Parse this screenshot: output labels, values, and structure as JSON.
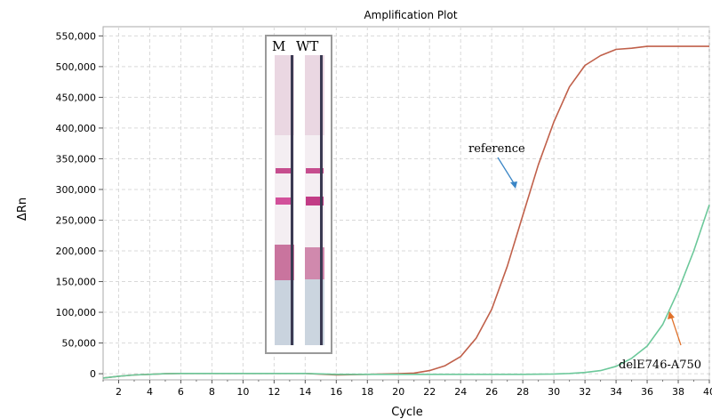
{
  "chart_data": {
    "type": "line",
    "title": "Amplification Plot",
    "xlabel": "Cycle",
    "ylabel": "ΔRn",
    "xlim": [
      1,
      40
    ],
    "ylim": [
      -10000,
      565000
    ],
    "x_ticks": [
      2,
      4,
      6,
      8,
      10,
      12,
      14,
      16,
      18,
      20,
      22,
      24,
      26,
      28,
      30,
      32,
      34,
      36,
      38,
      40
    ],
    "y_ticks": [
      0,
      50000,
      100000,
      150000,
      200000,
      250000,
      300000,
      350000,
      400000,
      450000,
      500000,
      550000
    ],
    "y_tick_labels": [
      "0",
      "50,000",
      "100,000",
      "150,000",
      "200,000",
      "250,000",
      "300,000",
      "350,000",
      "400,000",
      "450,000",
      "500,000",
      "550,000"
    ],
    "grid": true,
    "series": [
      {
        "name": "reference",
        "color": "#c0604a",
        "x": [
          1,
          2,
          3,
          4,
          5,
          6,
          8,
          10,
          12,
          14,
          16,
          18,
          20,
          21,
          22,
          23,
          24,
          25,
          26,
          27,
          28,
          29,
          30,
          31,
          32,
          33,
          34,
          35,
          36,
          37,
          38,
          39,
          40
        ],
        "y": [
          -7000,
          -4000,
          -2000,
          -1000,
          0,
          500,
          500,
          500,
          500,
          500,
          -2000,
          -1000,
          0,
          1000,
          5000,
          13000,
          28000,
          58000,
          105000,
          175000,
          258000,
          340000,
          410000,
          467000,
          502000,
          518000,
          528000,
          530000,
          533000,
          533000,
          533000,
          533000,
          533000
        ]
      },
      {
        "name": "delE746-A750",
        "color": "#6cc89a",
        "x": [
          1,
          2,
          3,
          4,
          5,
          6,
          8,
          10,
          12,
          14,
          16,
          18,
          20,
          22,
          24,
          26,
          28,
          30,
          31,
          32,
          33,
          34,
          35,
          36,
          37,
          38,
          39,
          40
        ],
        "y": [
          -7000,
          -4000,
          -2000,
          -1000,
          0,
          500,
          500,
          500,
          500,
          500,
          -1000,
          -1000,
          -1000,
          -1000,
          -1000,
          -1000,
          -1000,
          -500,
          500,
          2000,
          5000,
          12000,
          25000,
          45000,
          80000,
          135000,
          200000,
          275000
        ]
      }
    ],
    "annotations": [
      "reference",
      "delE746-A750"
    ],
    "inset": {
      "labels": [
        "M",
        "WT"
      ]
    }
  }
}
